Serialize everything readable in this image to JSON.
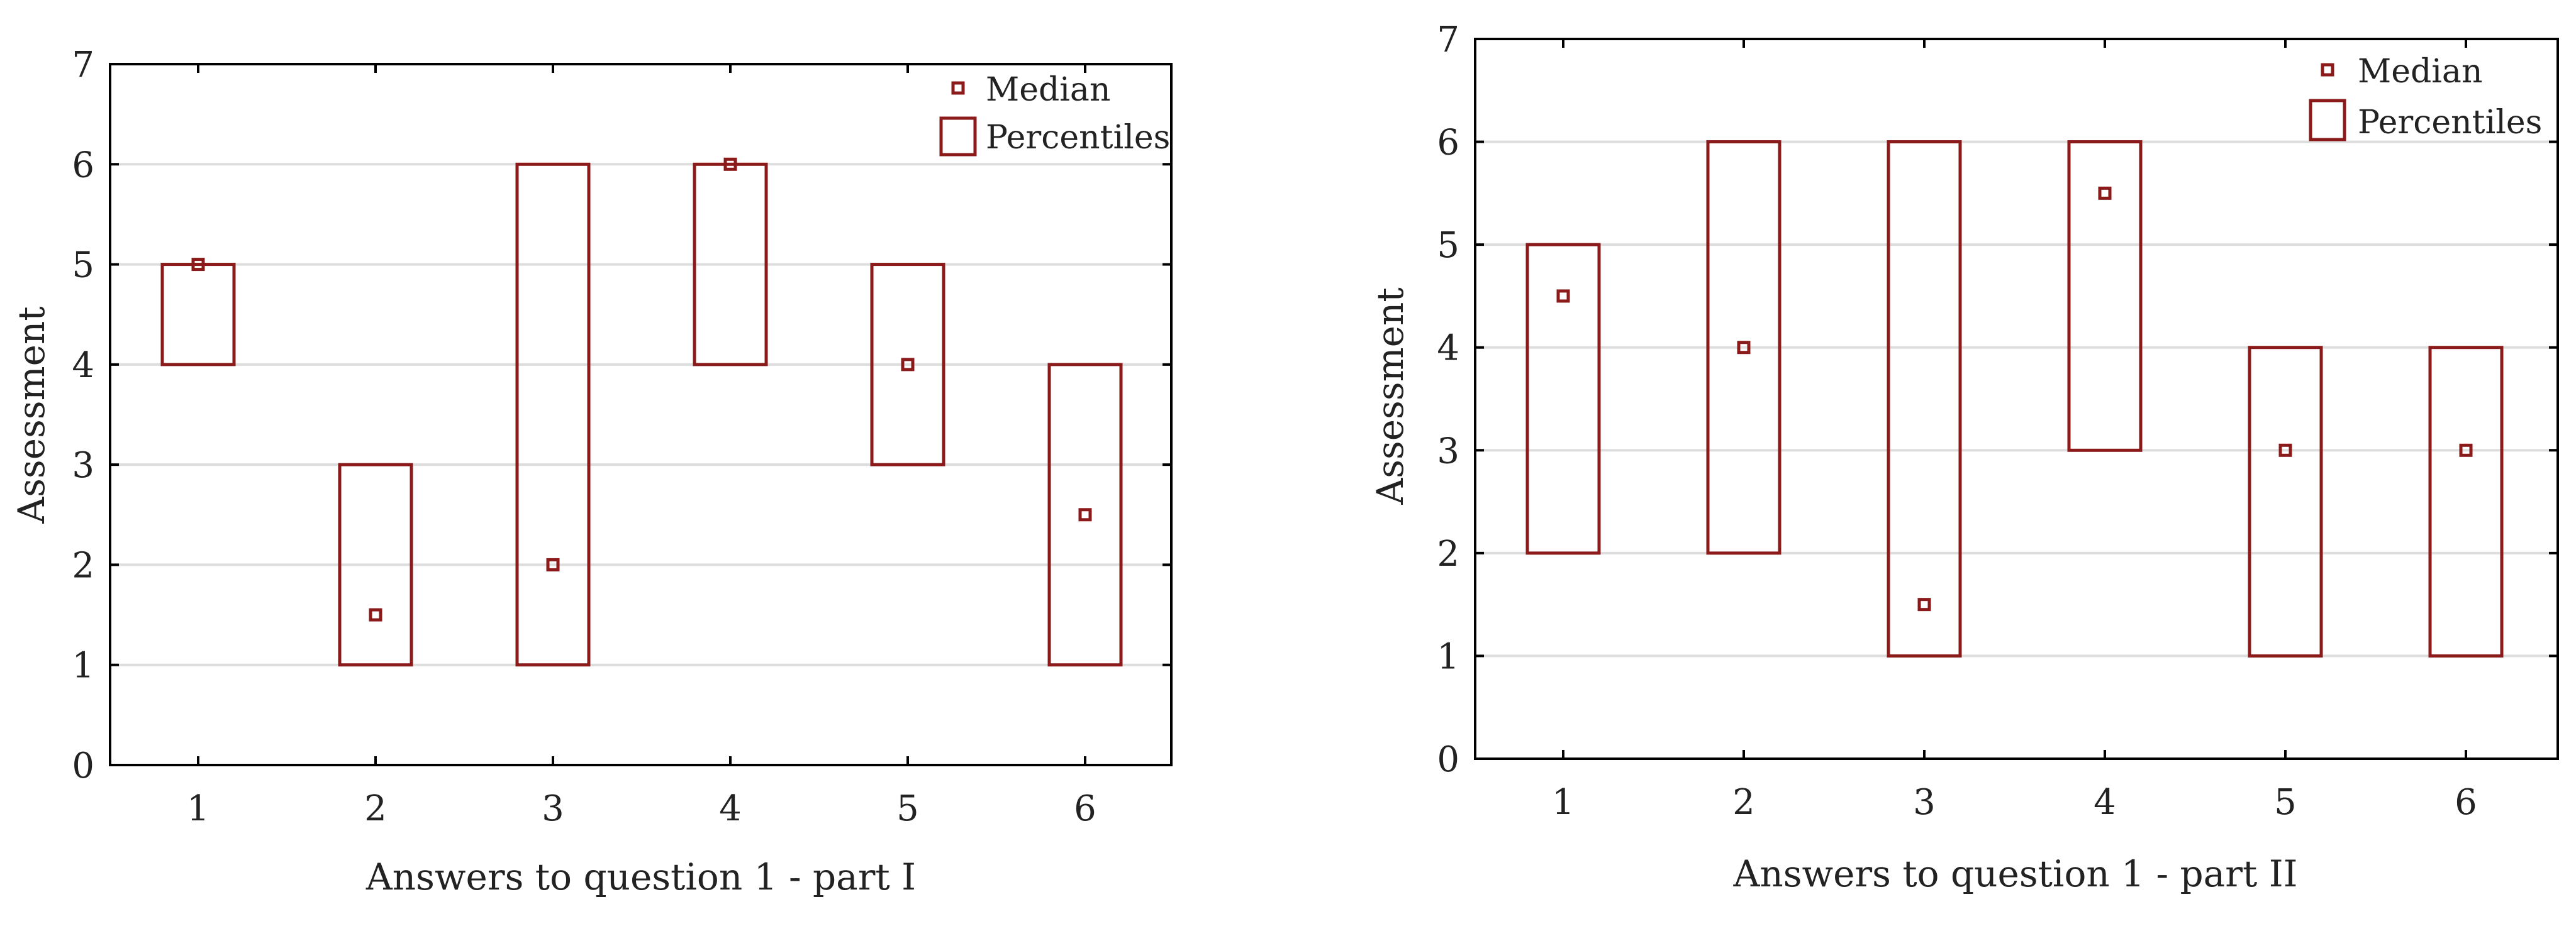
{
  "colors": {
    "series": "#8b1a1a",
    "grid": "#dddddd",
    "axis": "#000000",
    "background": "#ffffff"
  },
  "legend": {
    "median_label": "Median",
    "percentiles_label": "Percentiles"
  },
  "chart_data": [
    {
      "type": "box",
      "title": "",
      "xlabel": "Answers to question 1 - part I",
      "ylabel": "Assessment",
      "ylim": [
        0,
        7
      ],
      "yticks": [
        0,
        1,
        2,
        3,
        4,
        5,
        6,
        7
      ],
      "grid": true,
      "legend_position": "top-right",
      "categories": [
        "1",
        "2",
        "3",
        "4",
        "5",
        "6"
      ],
      "median": [
        5,
        1.5,
        2,
        6,
        4,
        2.5
      ],
      "percentile_low": [
        4,
        1,
        1,
        4,
        3,
        1
      ],
      "percentile_high": [
        5,
        3,
        6,
        6,
        5,
        4
      ]
    },
    {
      "type": "box",
      "title": "",
      "xlabel": "Answers to question 1 - part II",
      "ylabel": "Assessment",
      "ylim": [
        0,
        7
      ],
      "yticks": [
        0,
        1,
        2,
        3,
        4,
        5,
        6,
        7
      ],
      "grid": true,
      "legend_position": "top-right",
      "categories": [
        "1",
        "2",
        "3",
        "4",
        "5",
        "6"
      ],
      "median": [
        4.5,
        4,
        1.5,
        5.5,
        3,
        3
      ],
      "percentile_low": [
        2,
        2,
        1,
        3,
        1,
        1
      ],
      "percentile_high": [
        5,
        6,
        6,
        6,
        4,
        4
      ]
    }
  ]
}
